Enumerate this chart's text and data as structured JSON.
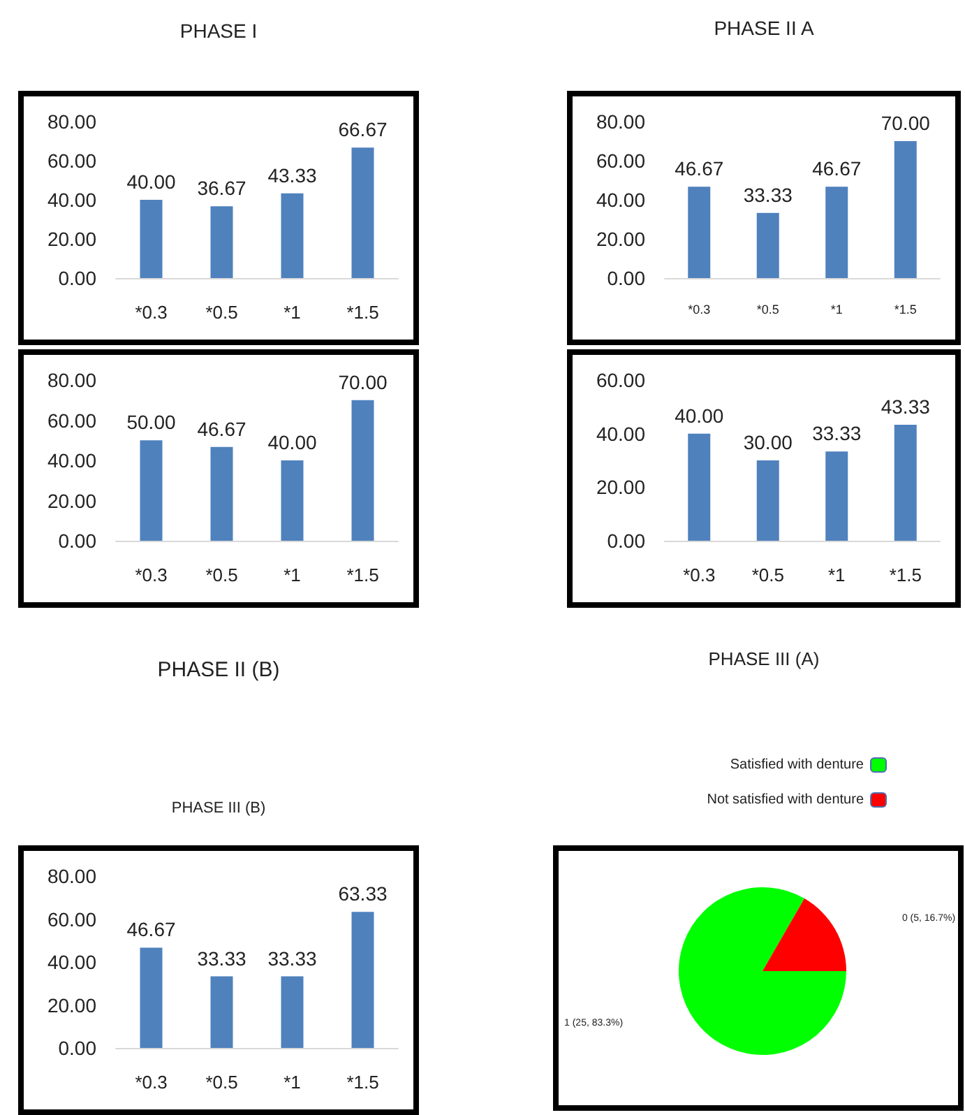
{
  "chart_data": [
    {
      "type": "bar",
      "title": "PHASE I",
      "categories": [
        "*0.3",
        "*0.5",
        "*1",
        "*1.5"
      ],
      "values": [
        40,
        36.67,
        43.33,
        66.67
      ],
      "value_labels": [
        "40.00",
        "36.67",
        "43.33",
        "66.67"
      ],
      "color": "#4f81bd",
      "ylim": [
        0,
        80
      ],
      "yticks": [
        {
          "value": 0,
          "label": "0.00"
        },
        {
          "value": 20,
          "label": "20.00"
        },
        {
          "value": 40,
          "label": "40.00"
        },
        {
          "value": 60,
          "label": "60.00"
        },
        {
          "value": 80,
          "label": "80.00"
        }
      ],
      "grid": false
    },
    {
      "type": "bar",
      "title": "PHASE II A",
      "categories": [
        "*0.3",
        "*0.5",
        "*1",
        "*1.5"
      ],
      "values": [
        46.67,
        33.33,
        46.67,
        70
      ],
      "value_labels": [
        "46.67",
        "33.33",
        "46.67",
        "70.00"
      ],
      "color": "#4f81bd",
      "ylim": [
        0,
        80
      ],
      "yticks": [
        {
          "value": 0,
          "label": "0.00"
        },
        {
          "value": 20,
          "label": "20.00"
        },
        {
          "value": 40,
          "label": "40.00"
        },
        {
          "value": 60,
          "label": "60.00"
        },
        {
          "value": 80,
          "label": "80.00"
        }
      ],
      "grid": false
    },
    {
      "type": "bar",
      "title": "PHASE II (B)",
      "categories": [
        "*0.3",
        "*0.5",
        "*1",
        "*1.5"
      ],
      "values": [
        50,
        46.67,
        40,
        70
      ],
      "value_labels": [
        "50.00",
        "46.67",
        "40.00",
        "70.00"
      ],
      "color": "#4f81bd",
      "ylim": [
        0,
        80
      ],
      "yticks": [
        {
          "value": 0,
          "label": "0.00"
        },
        {
          "value": 20,
          "label": "20.00"
        },
        {
          "value": 40,
          "label": "40.00"
        },
        {
          "value": 60,
          "label": "60.00"
        },
        {
          "value": 80,
          "label": "80.00"
        }
      ],
      "grid": false
    },
    {
      "type": "bar",
      "title": "PHASE III (A)",
      "categories": [
        "*0.3",
        "*0.5",
        "*1",
        "*1.5"
      ],
      "values": [
        40,
        30,
        33.33,
        43.33
      ],
      "value_labels": [
        "40.00",
        "30.00",
        "33.33",
        "43.33"
      ],
      "color": "#4f81bd",
      "ylim": [
        0,
        60
      ],
      "yticks": [
        {
          "value": 0,
          "label": "0.00"
        },
        {
          "value": 20,
          "label": "20.00"
        },
        {
          "value": 40,
          "label": "40.00"
        },
        {
          "value": 60,
          "label": "60.00"
        }
      ],
      "grid": false
    },
    {
      "type": "bar",
      "title": "PHASE III (B)",
      "categories": [
        "*0.3",
        "*0.5",
        "*1",
        "*1.5"
      ],
      "values": [
        46.67,
        33.33,
        33.33,
        63.33
      ],
      "value_labels": [
        "46.67",
        "33.33",
        "33.33",
        "63.33"
      ],
      "color": "#4f81bd",
      "ylim": [
        0,
        80
      ],
      "yticks": [
        {
          "value": 0,
          "label": "0.00"
        },
        {
          "value": 20,
          "label": "20.00"
        },
        {
          "value": 40,
          "label": "40.00"
        },
        {
          "value": 60,
          "label": "60.00"
        },
        {
          "value": 80,
          "label": "80.00"
        }
      ],
      "grid": false
    },
    {
      "type": "pie",
      "categories": [
        "Satisfied with denture",
        "Not satisfied with denture"
      ],
      "values": [
        25,
        5
      ],
      "value_labels": [
        "1 (25, 83.3%)",
        "0 (5, 16.7%)"
      ],
      "colors": [
        "#00ff00",
        "#ff0000"
      ],
      "legend": "top right"
    }
  ]
}
